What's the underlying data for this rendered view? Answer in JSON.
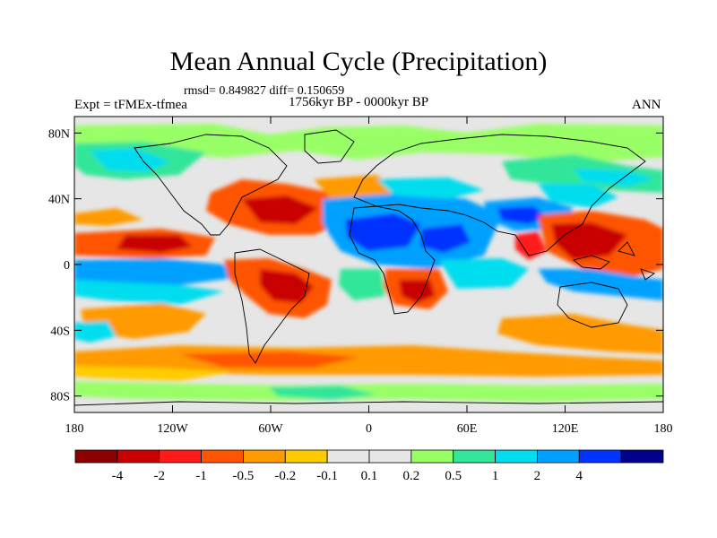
{
  "title": "Mean Annual Cycle (Precipitation)",
  "stats_line": "rmsd= 0.849827 diff= 0.150659",
  "subtitle": "1756kyr BP - 0000kyr BP",
  "left_label": "Expt = tFMEx-tfmea",
  "right_label": "ANN",
  "map": {
    "projection": "cylindrical-equidistant",
    "lon_range": [
      -180,
      180
    ],
    "lat_range": [
      -90,
      90
    ],
    "lat_ticks": [
      {
        "value": 80,
        "label": "80N"
      },
      {
        "value": 40,
        "label": "40N"
      },
      {
        "value": 0,
        "label": "0"
      },
      {
        "value": -40,
        "label": "40S"
      },
      {
        "value": -80,
        "label": "80S"
      }
    ],
    "lon_ticks": [
      {
        "value": -180,
        "label": "180"
      },
      {
        "value": -120,
        "label": "120W"
      },
      {
        "value": -60,
        "label": "60W"
      },
      {
        "value": 0,
        "label": "0"
      },
      {
        "value": 60,
        "label": "60E"
      },
      {
        "value": 120,
        "label": "120E"
      },
      {
        "value": 180,
        "label": "180"
      }
    ]
  },
  "colorbar": {
    "colors": [
      "#8b0000",
      "#c80000",
      "#ff1a1a",
      "#ff5500",
      "#ff9a00",
      "#ffcc00",
      "#e6e6e6",
      "#e6e6e6",
      "#99ff66",
      "#33e699",
      "#00ddee",
      "#00a0ff",
      "#0033ff",
      "#00008b"
    ],
    "labels": [
      "-4",
      "-2",
      "-1",
      "-0.5",
      "-0.2",
      "-0.1",
      "0.1",
      "0.2",
      "0.5",
      "1",
      "2",
      "4"
    ]
  },
  "background_color": "#e6e6e6"
}
